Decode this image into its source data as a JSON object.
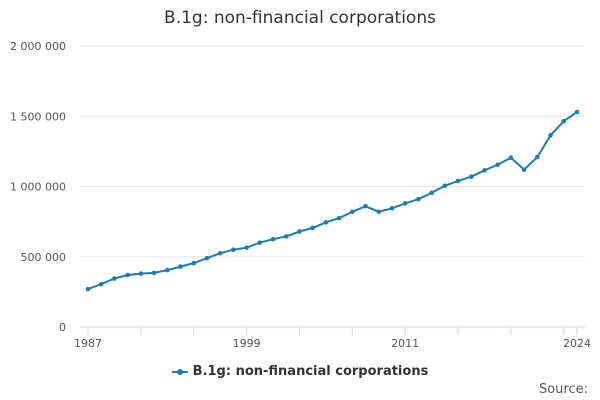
{
  "colors": {
    "series": "#1f7bb6",
    "grid": "#e6e6e6",
    "axis": "#ccd6eb",
    "text": "#333333"
  },
  "source_label": "Source:",
  "chart_data": {
    "type": "line",
    "title": "B.1g: non-financial corporations",
    "xlabel": "",
    "ylabel": "",
    "x_tick_labels": [
      "1987",
      "1999",
      "2011",
      "2024"
    ],
    "y_tick_labels": [
      "0",
      "500 000",
      "1 000 000",
      "1 500 000",
      "2 000 000"
    ],
    "ylim": [
      0,
      2000000
    ],
    "xlim": [
      1987,
      2024
    ],
    "grid": true,
    "legend_position": "bottom-center",
    "series": [
      {
        "name": "B.1g: non-financial corporations",
        "x": [
          1987,
          1988,
          1989,
          1990,
          1991,
          1992,
          1993,
          1994,
          1995,
          1996,
          1997,
          1998,
          1999,
          2000,
          2001,
          2002,
          2003,
          2004,
          2005,
          2006,
          2007,
          2008,
          2009,
          2010,
          2011,
          2012,
          2013,
          2014,
          2015,
          2016,
          2017,
          2018,
          2019,
          2020,
          2021,
          2022,
          2023,
          2024
        ],
        "values": [
          270000,
          305000,
          345000,
          370000,
          380000,
          385000,
          405000,
          430000,
          455000,
          490000,
          525000,
          550000,
          565000,
          600000,
          625000,
          645000,
          680000,
          705000,
          745000,
          775000,
          820000,
          860000,
          820000,
          845000,
          880000,
          910000,
          955000,
          1005000,
          1040000,
          1070000,
          1115000,
          1155000,
          1205000,
          1120000,
          1210000,
          1365000,
          1465000,
          1530000
        ]
      }
    ]
  }
}
